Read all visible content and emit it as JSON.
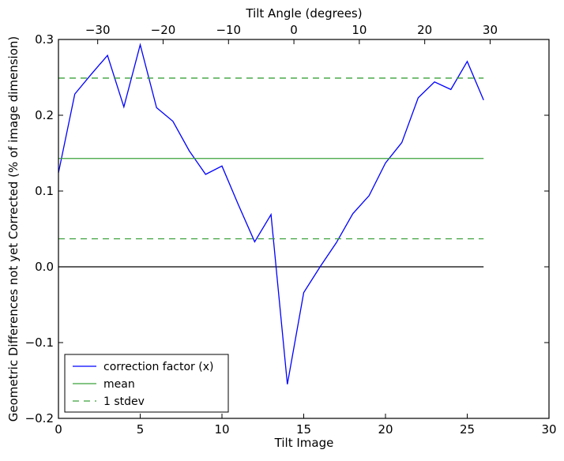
{
  "chart_data": {
    "type": "line",
    "title": "",
    "xlabel": "Tilt Image",
    "ylabel": "Geometric Differences not yet Corrected (% of image dimension)",
    "top_xlabel": "Tilt Angle (degrees)",
    "xlim": [
      0,
      30
    ],
    "ylim": [
      -0.2,
      0.3
    ],
    "grid": false,
    "legend_position": "lower-left",
    "x_ticks": [
      "0",
      "5",
      "10",
      "15",
      "20",
      "25",
      "30"
    ],
    "y_ticks": [
      "−0.2",
      "−0.1",
      "0.0",
      "0.1",
      "0.2",
      "0.3"
    ],
    "top_ticks": [
      {
        "angle": -30,
        "label": "−30"
      },
      {
        "angle": -20,
        "label": "−20"
      },
      {
        "angle": -10,
        "label": "−10"
      },
      {
        "angle": 0,
        "label": "0"
      },
      {
        "angle": 10,
        "label": "10"
      },
      {
        "angle": 20,
        "label": "20"
      },
      {
        "angle": 30,
        "label": "30"
      }
    ],
    "top_axis_angle_at_image_0": -36,
    "top_axis_angle_at_image_26": 29,
    "zero_line": {
      "y": 0.0,
      "color": "#000000"
    },
    "series": [
      {
        "name": "correction factor (x)",
        "color": "#0000ff",
        "style": "solid",
        "x": [
          0,
          1,
          2,
          3,
          4,
          5,
          6,
          7,
          8,
          9,
          10,
          11,
          12,
          13,
          14,
          15,
          16,
          17,
          18,
          19,
          20,
          21,
          22,
          23,
          24,
          25,
          26
        ],
        "y": [
          0.124,
          0.228,
          0.254,
          0.279,
          0.211,
          0.293,
          0.21,
          0.192,
          0.153,
          0.122,
          0.133,
          0.082,
          0.033,
          0.069,
          -0.155,
          -0.034,
          0.0,
          0.032,
          0.07,
          0.094,
          0.137,
          0.164,
          0.223,
          0.244,
          0.234,
          0.271,
          0.22
        ]
      },
      {
        "name": "mean",
        "color": "#3aa03a",
        "style": "solid",
        "x": [
          0,
          26
        ],
        "y": [
          0.143,
          0.143
        ]
      },
      {
        "name": "1 stdev",
        "color": "#3aa03a",
        "style": "dashed",
        "x": [
          0,
          26
        ],
        "y": [
          0.249,
          0.249
        ],
        "x2": [
          0,
          26
        ],
        "y2": [
          0.037,
          0.037
        ]
      }
    ]
  }
}
